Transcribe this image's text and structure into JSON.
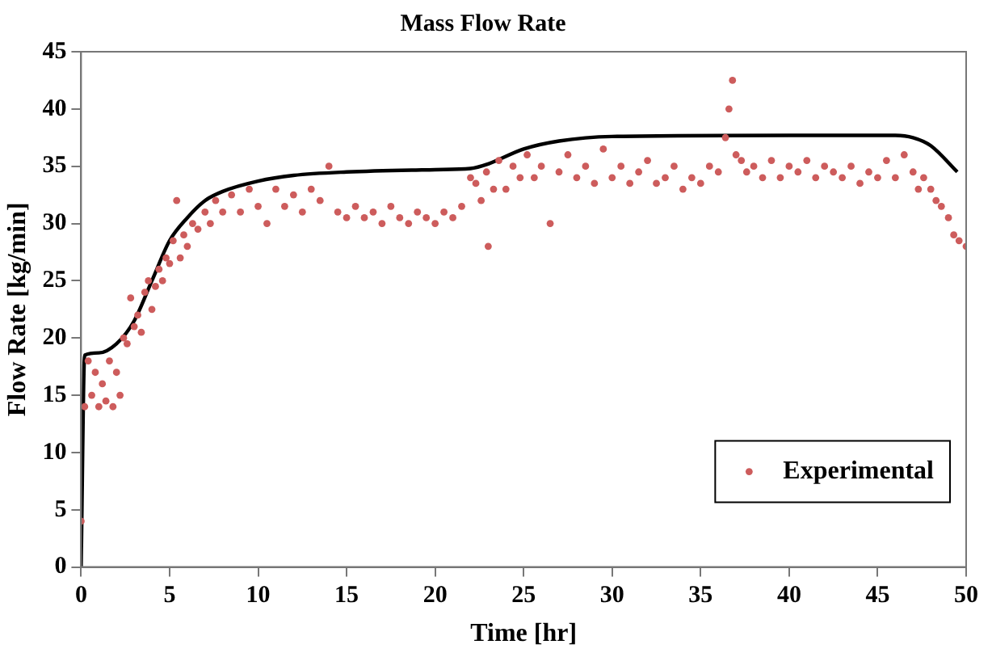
{
  "chart_data": {
    "type": "scatter",
    "title": "Mass Flow Rate",
    "xlabel": "Time [hr]",
    "ylabel": "Flow Rate [kg/min]",
    "xlim": [
      0,
      50
    ],
    "xticks": [
      0,
      5,
      10,
      15,
      20,
      25,
      30,
      35,
      40,
      45,
      50
    ],
    "ylim": [
      0,
      45
    ],
    "yticks": [
      0,
      5,
      10,
      15,
      20,
      25,
      30,
      35,
      40,
      45
    ],
    "grid": false,
    "legend": "bottom right",
    "marker": "circle",
    "series": [
      {
        "name": "Experimental",
        "color": "#cd5c5c",
        "x": [
          0,
          0.2,
          0.4,
          0.6,
          0.8,
          1.0,
          1.2,
          1.4,
          1.6,
          1.8,
          2.0,
          2.2,
          2.4,
          2.6,
          2.8,
          3.0,
          3.2,
          3.4,
          3.6,
          3.8,
          4.0,
          4.2,
          4.4,
          4.6,
          4.8,
          5.0,
          5.2,
          5.4,
          5.6,
          5.8,
          6.0,
          6.3,
          6.6,
          7.0,
          7.3,
          7.6,
          8.0,
          8.5,
          9.0,
          9.5,
          10.0,
          10.5,
          11.0,
          11.5,
          12.0,
          12.5,
          13.0,
          13.5,
          14.0,
          14.5,
          15.0,
          15.5,
          16.0,
          16.5,
          17.0,
          17.5,
          18.0,
          18.5,
          19.0,
          19.5,
          20.0,
          20.5,
          21.0,
          21.5,
          22.0,
          22.3,
          22.6,
          22.9,
          23.0,
          23.3,
          23.6,
          24.0,
          24.4,
          24.8,
          25.2,
          25.6,
          26.0,
          26.5,
          27.0,
          27.5,
          28.0,
          28.5,
          29.0,
          29.5,
          30.0,
          30.5,
          31.0,
          31.5,
          32.0,
          32.5,
          33.0,
          33.5,
          34.0,
          34.5,
          35.0,
          35.5,
          36.0,
          36.4,
          36.6,
          36.8,
          37.0,
          37.3,
          37.6,
          38.0,
          38.5,
          39.0,
          39.5,
          40.0,
          40.5,
          41.0,
          41.5,
          42.0,
          42.5,
          43.0,
          43.5,
          44.0,
          44.5,
          45.0,
          45.5,
          46.0,
          46.5,
          47.0,
          47.3,
          47.6,
          48.0,
          48.3,
          48.6,
          49.0,
          49.3,
          49.6,
          50.0
        ],
        "values": [
          4,
          14,
          18,
          15,
          17,
          14,
          16,
          14.5,
          18,
          14,
          17,
          15,
          20,
          19.5,
          23.5,
          21,
          22,
          20.5,
          24,
          25,
          22.5,
          24.5,
          26,
          25,
          27,
          26.5,
          28.5,
          32,
          27,
          29,
          28,
          30,
          29.5,
          31,
          30,
          32,
          31,
          32.5,
          31,
          33,
          31.5,
          30,
          33,
          31.5,
          32.5,
          31,
          33,
          32,
          35,
          31,
          30.5,
          31.5,
          30.5,
          31,
          30,
          31.5,
          30.5,
          30,
          31,
          30.5,
          30,
          31,
          30.5,
          31.5,
          34,
          33.5,
          32,
          34.5,
          28,
          33,
          35.5,
          33,
          35,
          34,
          36,
          34,
          35,
          30,
          34.5,
          36,
          34,
          35,
          33.5,
          36.5,
          34,
          35,
          33.5,
          34.5,
          35.5,
          33.5,
          34,
          35,
          33,
          34,
          33.5,
          35,
          34.5,
          37.5,
          40,
          42.5,
          36,
          35.5,
          34.5,
          35,
          34,
          35.5,
          34,
          35,
          34.5,
          35.5,
          34,
          35,
          34.5,
          34,
          35,
          33.5,
          34.5,
          34,
          35.5,
          34,
          36,
          34.5,
          33,
          34,
          33,
          32,
          31.5,
          30.5,
          29,
          28.5,
          28
        ]
      },
      {
        "type": "line",
        "color": "#000000",
        "marker": "none",
        "x": [
          0,
          0.2,
          1,
          2,
          3,
          4,
          5,
          6,
          7,
          8,
          10,
          12,
          15,
          20,
          22,
          23,
          25,
          27,
          30,
          40,
          46,
          47,
          48,
          49.5
        ],
        "values": [
          0,
          18.5,
          18.7,
          19.5,
          21.5,
          25,
          28.5,
          30.5,
          32,
          32.8,
          33.7,
          34.2,
          34.5,
          34.7,
          34.8,
          35.2,
          36.5,
          37.2,
          37.6,
          37.7,
          37.7,
          37.5,
          36.8,
          34.5
        ]
      }
    ]
  }
}
